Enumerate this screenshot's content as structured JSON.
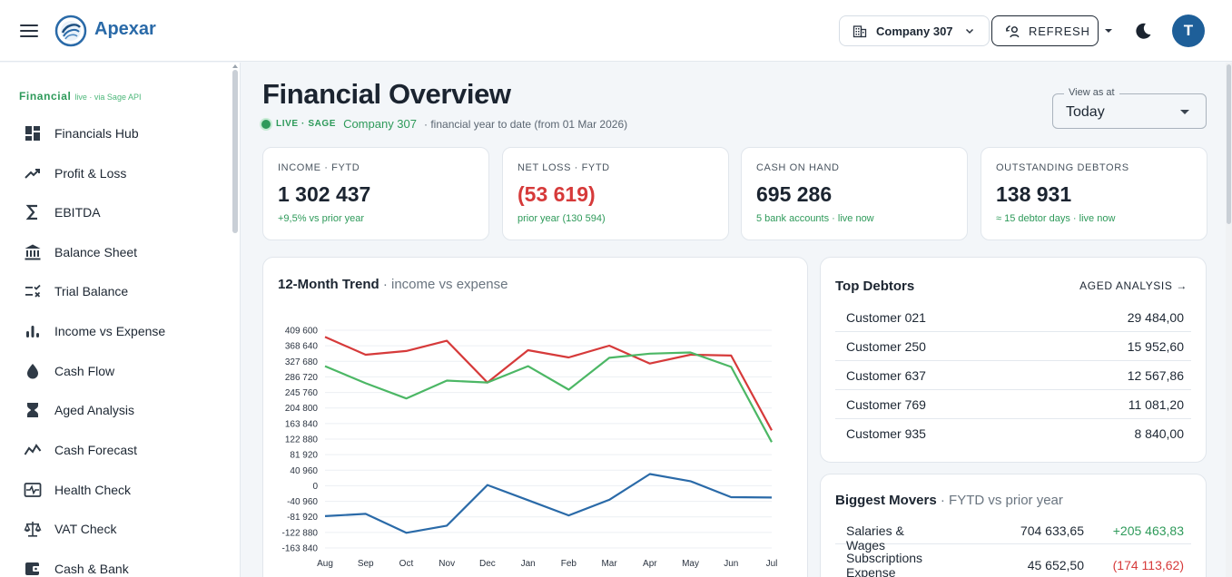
{
  "app": {
    "brand": "Apexar",
    "company_select": "Company 307",
    "refresh_label": "REFRESH",
    "avatar_initial": "T"
  },
  "sidebar": {
    "section_title": "Financial",
    "section_note": "live · via Sage API",
    "items": [
      {
        "label": "Financials Hub",
        "icon": "dashboard-icon"
      },
      {
        "label": "Profit & Loss",
        "icon": "trending-up-icon"
      },
      {
        "label": "EBITDA",
        "icon": "sigma-icon"
      },
      {
        "label": "Balance Sheet",
        "icon": "bank-icon"
      },
      {
        "label": "Trial Balance",
        "icon": "rule-icon"
      },
      {
        "label": "Income vs Expense",
        "icon": "bar-chart-icon"
      },
      {
        "label": "Cash Flow",
        "icon": "water-drop-icon"
      },
      {
        "label": "Aged Analysis",
        "icon": "hourglass-icon"
      },
      {
        "label": "Cash Forecast",
        "icon": "line-chart-icon"
      },
      {
        "label": "Health Check",
        "icon": "pulse-icon"
      },
      {
        "label": "VAT Check",
        "icon": "scale-icon"
      },
      {
        "label": "Cash & Bank",
        "icon": "wallet-icon"
      }
    ]
  },
  "header": {
    "title": "Financial Overview",
    "live_tag": "LIVE · SAGE",
    "company": "Company 307",
    "note": "· financial year to date (from 01 Mar 2026)",
    "view_as_label": "View as at",
    "view_as_value": "Today"
  },
  "kpis": [
    {
      "label": "INCOME · FYTD",
      "value": "1 302 437",
      "note": "+9,5% vs prior year",
      "negative": false
    },
    {
      "label": "NET LOSS · FYTD",
      "value": "(53 619)",
      "note": "prior year (130 594)",
      "negative": true
    },
    {
      "label": "CASH ON HAND",
      "value": "695 286",
      "note": "5 bank accounts · live now",
      "negative": false
    },
    {
      "label": "OUTSTANDING DEBTORS",
      "value": "138 931",
      "note": "≈ 15 debtor days · live now",
      "negative": false
    }
  ],
  "trend": {
    "title": "12-Month Trend",
    "subtitle": "· income vs expense"
  },
  "chart_data": {
    "type": "line",
    "title": "12-Month Trend",
    "subtitle": "income vs expense",
    "categories": [
      "Aug",
      "Sep",
      "Oct",
      "Nov",
      "Dec",
      "Jan",
      "Feb",
      "Mar",
      "Apr",
      "May",
      "Jun",
      "Jul"
    ],
    "y_ticks": [
      "409 600",
      "368 640",
      "327 680",
      "286 720",
      "245 760",
      "204 800",
      "163 840",
      "122 880",
      "81 920",
      "40 960",
      "0",
      "-40 960",
      "-81 920",
      "-122 880",
      "-163 840"
    ],
    "ylim": [
      -163840,
      409600
    ],
    "grid": true,
    "series": [
      {
        "color": "#d63a3a",
        "values": [
          392000,
          345000,
          355000,
          382000,
          272000,
          357000,
          338000,
          369000,
          322000,
          345000,
          343000,
          146000
        ]
      },
      {
        "color": "#4cb765",
        "values": [
          315000,
          270000,
          230000,
          277000,
          272000,
          315000,
          253000,
          337000,
          348000,
          351000,
          313000,
          115000
        ]
      },
      {
        "color": "#2a6aa8",
        "values": [
          -80000,
          -74000,
          -124000,
          -105000,
          2000,
          -38000,
          -78000,
          -37000,
          31000,
          12000,
          -30000,
          -31000
        ]
      }
    ]
  },
  "debtors": {
    "title": "Top Debtors",
    "link": "AGED ANALYSIS →",
    "rows": [
      {
        "name": "Customer 021",
        "amount": "29 484,00"
      },
      {
        "name": "Customer 250",
        "amount": "15 952,60"
      },
      {
        "name": "Customer 637",
        "amount": "12 567,86"
      },
      {
        "name": "Customer 769",
        "amount": "11 081,20"
      },
      {
        "name": "Customer 935",
        "amount": "8 840,00"
      }
    ]
  },
  "movers": {
    "title": "Biggest Movers",
    "subtitle": "· FYTD vs prior year",
    "rows": [
      {
        "name": "Salaries & Wages",
        "value": "704 633,65",
        "delta": "+205 463,83",
        "positive": true
      },
      {
        "name": "Subscriptions Expense",
        "value": "45 652,50",
        "delta": "(174 113,62)",
        "positive": false
      }
    ]
  }
}
